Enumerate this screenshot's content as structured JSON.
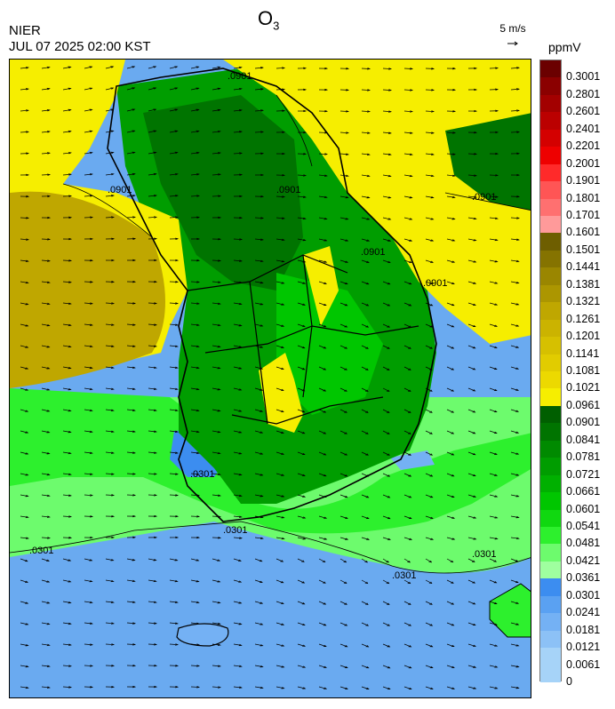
{
  "title": {
    "species": "O",
    "subscript": "3"
  },
  "header": {
    "agency": "NIER",
    "datetime": "JUL 07 2025 02:00 KST"
  },
  "wind_reference": {
    "label": "5 m/s",
    "icon": "arrow-right-icon"
  },
  "legend": {
    "unit": "ppmV",
    "labels": [
      "0.3001",
      "0.2801",
      "0.2601",
      "0.2401",
      "0.2201",
      "0.2001",
      "0.1901",
      "0.1801",
      "0.1701",
      "0.1601",
      "0.1501",
      "0.1441",
      "0.1381",
      "0.1321",
      "0.1261",
      "0.1201",
      "0.1141",
      "0.1081",
      "0.1021",
      "0.0961",
      "0.0901",
      "0.0841",
      "0.0781",
      "0.0721",
      "0.0661",
      "0.0601",
      "0.0541",
      "0.0481",
      "0.0421",
      "0.0361",
      "0.0301",
      "0.0241",
      "0.0181",
      "0.0121",
      "0.0061",
      "0"
    ],
    "colors": [
      "#6b0000",
      "#8b0000",
      "#a30000",
      "#bb0000",
      "#d40000",
      "#ee0000",
      "#ff2a2a",
      "#ff5555",
      "#ff7070",
      "#ff9a9a",
      "#6e5e00",
      "#857300",
      "#9a8600",
      "#ac9600",
      "#bfa700",
      "#cbb300",
      "#d6c000",
      "#e1cc00",
      "#ecd900",
      "#f6ee00",
      "#005f00",
      "#007400",
      "#008a00",
      "#009d00",
      "#00b000",
      "#00c600",
      "#10d810",
      "#2df02d",
      "#6dfb6d",
      "#9fff9f",
      "#3c8df0",
      "#5aa1f2",
      "#74b1f4",
      "#8cc1f6",
      "#a6d3f8",
      "#a6d3f8"
    ]
  },
  "map": {
    "contour_labels": [
      ".0301",
      ".0901",
      ".0901",
      ".0901",
      ".0901",
      ".0901",
      ".0901",
      ".0301",
      ".0301",
      ".0301",
      ".0301"
    ]
  }
}
